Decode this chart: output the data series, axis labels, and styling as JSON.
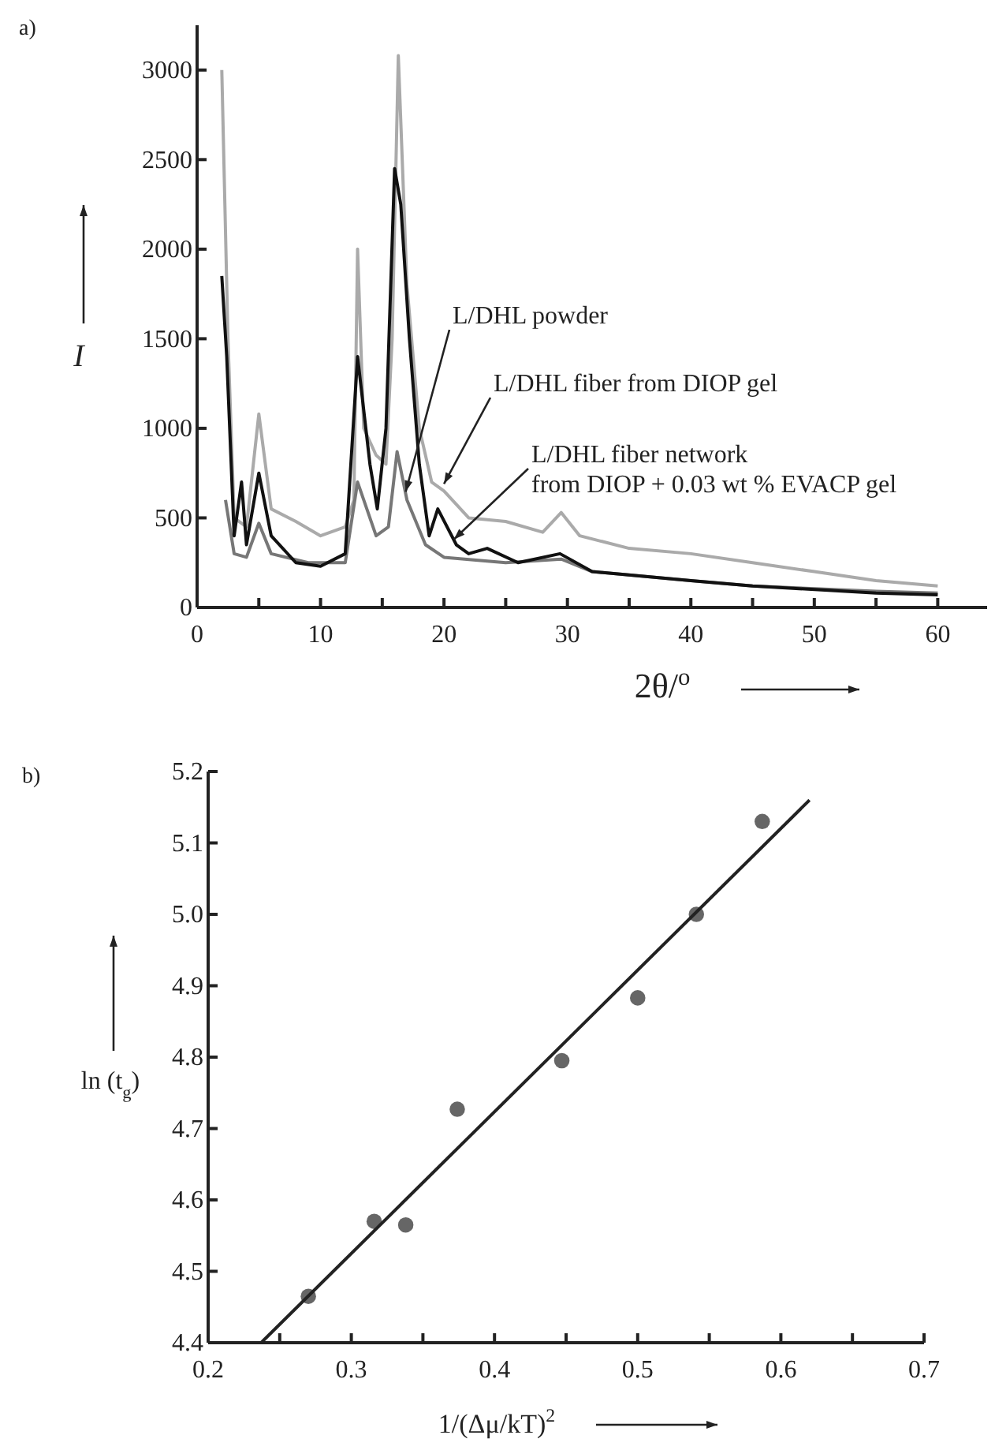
{
  "chart_data": [
    {
      "type": "line",
      "title": "a)",
      "xlabel": "2θ/$^{o}$",
      "ylabel": "I",
      "xlim": [
        0,
        64
      ],
      "ylim": [
        0,
        3250
      ],
      "xticks": [
        0,
        {
          "value": 5,
          "label": null
        },
        10,
        {
          "value": 15,
          "label": null
        },
        20,
        {
          "value": 25,
          "label": null
        },
        30,
        {
          "value": 35,
          "label": null
        },
        40,
        {
          "value": 45,
          "label": null
        },
        50,
        {
          "value": 55,
          "label": null
        },
        60
      ],
      "yticks": [
        0,
        500,
        1000,
        1500,
        2000,
        2500,
        3000
      ],
      "line_style": "solid",
      "marker": "none",
      "series": [
        {
          "color": "#aaaaaa",
          "x": [
            2.0,
            2.5,
            3,
            4,
            5,
            6,
            8,
            10,
            12,
            12.7,
            13.0,
            13.5,
            14.5,
            15.3,
            15.8,
            16.3,
            17,
            18,
            19,
            20,
            22,
            25,
            28,
            29.5,
            31,
            35,
            40,
            45,
            50,
            55,
            60
          ],
          "values": [
            3000,
            1500,
            500,
            450,
            1080,
            550,
            480,
            400,
            450,
            600,
            2000,
            1000,
            850,
            800,
            1500,
            3080,
            1800,
            1000,
            700,
            650,
            500,
            480,
            420,
            530,
            400,
            330,
            300,
            250,
            200,
            150,
            120
          ]
        },
        {
          "color": "#777777",
          "x": [
            2.3,
            3,
            4,
            5,
            6,
            9,
            12,
            13,
            14.5,
            15.5,
            16.2,
            17,
            18.5,
            20,
            25,
            29.5,
            32,
            40,
            45,
            55,
            60
          ],
          "values": [
            600,
            300,
            280,
            470,
            300,
            250,
            250,
            700,
            400,
            450,
            870,
            600,
            350,
            280,
            250,
            270,
            200,
            150,
            120,
            90,
            80
          ]
        },
        {
          "color": "#111111",
          "x": [
            2.0,
            2.4,
            3,
            3.6,
            4,
            5,
            6,
            8,
            10,
            12,
            13,
            14,
            14.6,
            15.3,
            16,
            16.5,
            17.2,
            18,
            18.8,
            19.5,
            21,
            22,
            23.5,
            26,
            29.4,
            32,
            40,
            45,
            55,
            60
          ],
          "values": [
            1850,
            1400,
            400,
            700,
            350,
            750,
            400,
            250,
            230,
            300,
            1400,
            800,
            550,
            1000,
            2450,
            2250,
            1500,
            800,
            400,
            550,
            350,
            300,
            330,
            250,
            300,
            200,
            150,
            120,
            80,
            70
          ]
        }
      ],
      "annotations": [
        {
          "text": "L/DHL powder",
          "x": 16.9,
          "y": 646
        },
        {
          "text": "L/DHL fiber from DIOP gel",
          "x": 20,
          "y": 690
        },
        {
          "text": "L/DHL fiber network\nfrom DIOP + 0.03 wt % EVACP gel",
          "x": 20.8,
          "y": 380
        }
      ]
    },
    {
      "type": "scatter",
      "title": "b)",
      "xlabel": "1/(Δμ/kT)$^{2}$",
      "ylabel": "ln (t$_{g}$)",
      "xlim": [
        0.2,
        0.7
      ],
      "ylim": [
        4.4,
        5.2
      ],
      "xticks": [
        0.2,
        {
          "value": 0.25,
          "label": null
        },
        0.3,
        {
          "value": 0.35,
          "label": null
        },
        0.4,
        {
          "value": 0.45,
          "label": null
        },
        0.5,
        {
          "value": 0.55,
          "label": null
        },
        0.6,
        {
          "value": 0.65,
          "label": null
        },
        0.7
      ],
      "yticks": [
        4.4,
        4.5,
        4.6,
        4.7,
        4.8,
        4.9,
        {
          "value": 5,
          "label": "5.0"
        },
        5.1,
        5.2
      ],
      "series": [
        {
          "type": "scatter",
          "color": "#666666",
          "marker": "circle",
          "x": [
            0.27,
            0.316,
            0.338,
            0.374,
            0.447,
            0.5,
            0.541,
            0.587
          ],
          "values": [
            4.465,
            4.57,
            4.565,
            4.727,
            4.795,
            4.883,
            5.0,
            5.13
          ]
        },
        {
          "type": "line",
          "color": "#222222",
          "line_style": "solid",
          "x": [
            0.237,
            0.62
          ],
          "values": [
            4.4,
            5.16
          ]
        }
      ]
    }
  ]
}
